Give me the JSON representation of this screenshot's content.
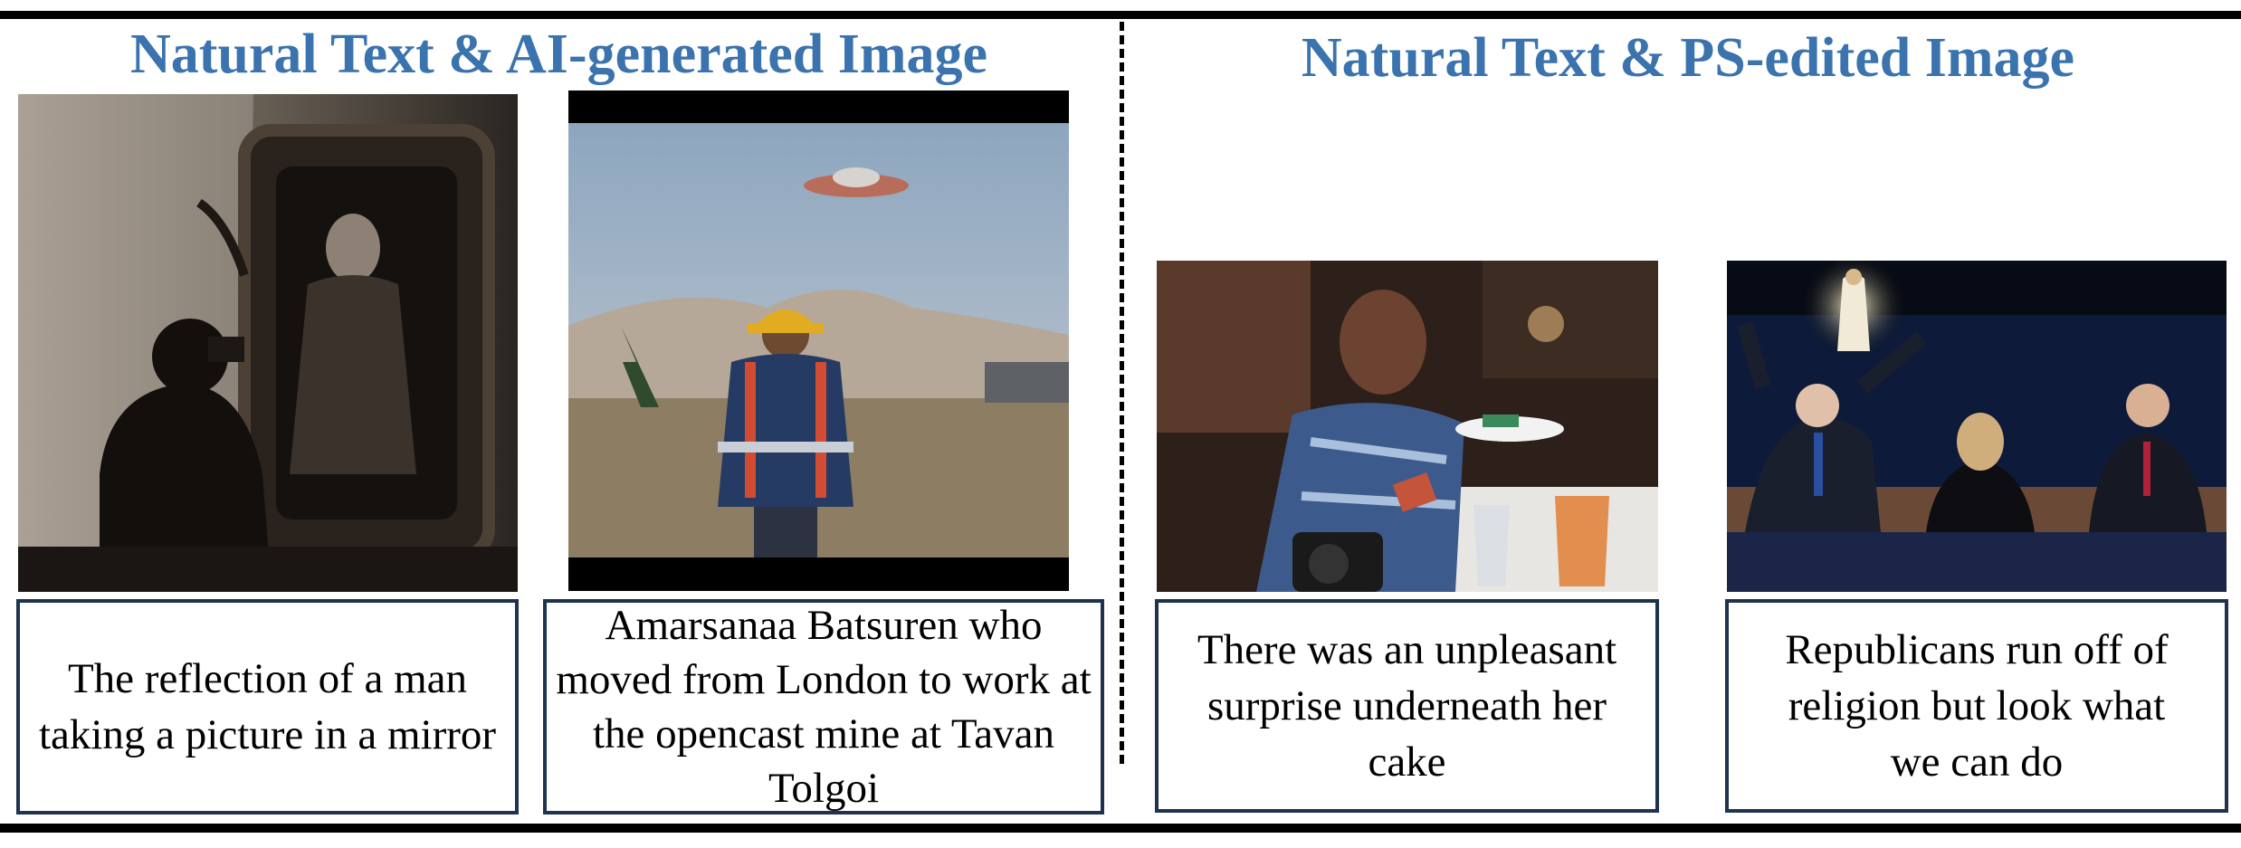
{
  "headings": {
    "left": "Natural Text & AI-generated Image",
    "right": "Natural Text & PS-edited Image"
  },
  "panels": [
    {
      "caption": "The reflection of a man taking a picture in a mirror"
    },
    {
      "caption": "Amarsanaa Batsuren who moved from London to work at the opencast mine at Tavan Tolgoi"
    },
    {
      "caption": "There was an unpleasant surprise underneath her cake"
    },
    {
      "caption": "Republicans run off of religion but look what we can do"
    }
  ]
}
